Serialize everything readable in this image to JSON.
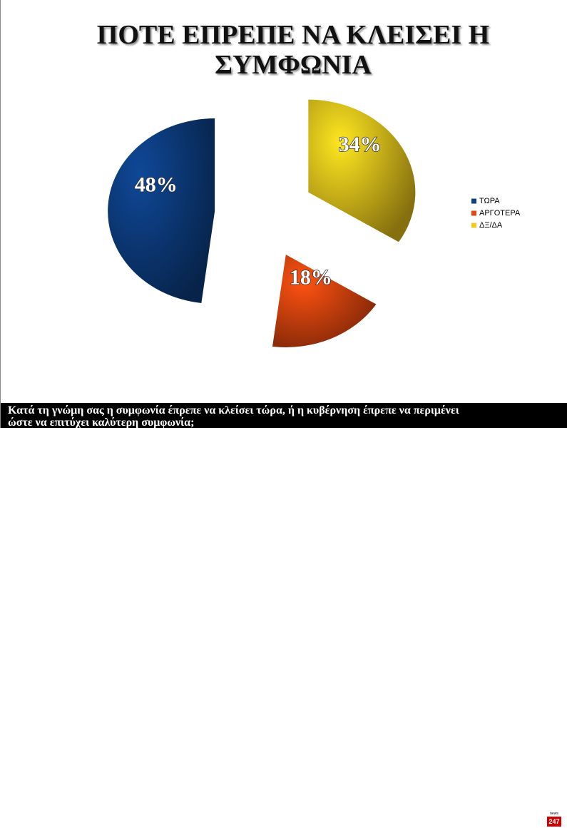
{
  "chart_data": {
    "type": "pie",
    "title": "ΠΟΤΕ ΕΠΡΕΠΕ ΝΑ ΚΛΕΙΣΕΙ Η ΣΥΜΦΩΝΙΑ",
    "categories": [
      "ΤΩΡΑ",
      "ΑΡΓΟΤΕΡΑ",
      "ΔΞ/ΔΑ"
    ],
    "values": [
      48,
      18,
      34
    ],
    "value_labels": [
      "48%",
      "18%",
      "34%"
    ],
    "colors": [
      "#0d3f84",
      "#e8470f",
      "#f2c91c"
    ],
    "legend": "right"
  },
  "caption": "Κατά τη γνώμη σας η συμφωνία έπρεπε να κλείσει τώρα, ή η κυβέρνηση έπρεπε να περιμένει ώστε να επιτύχει καλύτερη συμφωνία;",
  "logo": {
    "top": "news",
    "number": "247"
  }
}
